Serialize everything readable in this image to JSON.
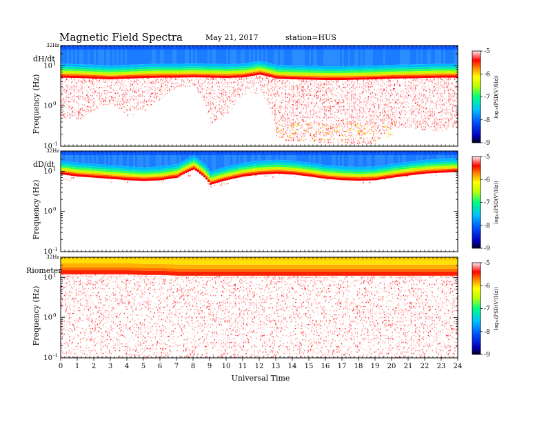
{
  "header": {
    "title": "Magnetic  Field  Spectra",
    "date": "May 21, 2017",
    "station": "station=HUS"
  },
  "chart_data": {
    "type": "heatmap",
    "xlabel": "Universal Time",
    "x_ticks": [
      "0",
      "1",
      "2",
      "3",
      "4",
      "5",
      "6",
      "7",
      "8",
      "9",
      "10",
      "11",
      "12",
      "13",
      "14",
      "15",
      "16",
      "17",
      "18",
      "19",
      "20",
      "21",
      "22",
      "23",
      "24"
    ],
    "xlim": [
      0,
      24
    ],
    "scale": "log",
    "colorbar": {
      "label": "log₁₀(PSD(V²/Hz))",
      "ticks": [
        "-5",
        "-6",
        "-7",
        "-8",
        "-9"
      ],
      "range": [
        -9,
        -5
      ],
      "colors": [
        "#000030",
        "#0000ff",
        "#00a0ff",
        "#00ff80",
        "#ffff00",
        "#ff0000",
        "#ffe0e0"
      ]
    },
    "panels": [
      {
        "name": "dH/dt",
        "ylabel": "Frequency  (Hz)",
        "top_label": "32Hz",
        "y_ticks": [
          {
            "base": "10",
            "exp": "1"
          },
          {
            "base": "10",
            "exp": "0"
          },
          {
            "base": "10",
            "exp": "-1"
          }
        ],
        "ylim": [
          0.1,
          32
        ],
        "cutoff_hz": [
          5.5,
          5.4,
          5.2,
          5.0,
          5.2,
          5.4,
          5.5,
          5.5,
          5.6,
          5.5,
          5.4,
          5.6,
          6.5,
          5.2,
          5.0,
          4.9,
          4.8,
          4.8,
          4.9,
          5.0,
          5.2,
          5.3,
          5.4,
          5.5,
          5.5
        ],
        "floor_hz": [
          0.5,
          0.45,
          0.8,
          1.2,
          0.5,
          0.8,
          1.5,
          3.0,
          3.0,
          0.35,
          0.6,
          2.0,
          2.0,
          0.15,
          0.14,
          0.13,
          0.12,
          0.12,
          0.11,
          0.12,
          0.3,
          0.3,
          0.25,
          0.25,
          0.3
        ]
      },
      {
        "name": "dD/dt",
        "ylabel": "Frequency  (Hz)",
        "top_label": "32Hz",
        "y_ticks": [
          {
            "base": "10",
            "exp": "1"
          },
          {
            "base": "10",
            "exp": "0"
          },
          {
            "base": "10",
            "exp": "-1"
          }
        ],
        "ylim": [
          0.1,
          32
        ],
        "cutoff_hz": [
          9.0,
          8.0,
          7.5,
          7.0,
          6.5,
          6.2,
          6.5,
          7.5,
          12.0,
          5.0,
          6.5,
          8.0,
          9.0,
          9.5,
          9.0,
          8.0,
          7.0,
          6.5,
          6.3,
          6.5,
          7.5,
          8.5,
          9.5,
          10.0,
          10.5
        ],
        "floor_hz": [
          6,
          6,
          6,
          5.5,
          5.5,
          5.2,
          5.5,
          6,
          8,
          4,
          5,
          6,
          7,
          7.5,
          7,
          6.5,
          6,
          5.5,
          5.2,
          5.5,
          6,
          7,
          7.5,
          8,
          8.5
        ]
      },
      {
        "name": "Riometer",
        "ylabel": "Frequency  (Hz)",
        "top_label": "32Hz",
        "y_ticks": [
          {
            "base": "10",
            "exp": "1"
          },
          {
            "base": "10",
            "exp": "0"
          },
          {
            "base": "10",
            "exp": "-1"
          }
        ],
        "ylim": [
          0.1,
          32
        ],
        "cutoff_hz": [
          13,
          13,
          13,
          13,
          13,
          12.5,
          12.5,
          12,
          12,
          12,
          12,
          12,
          12,
          12,
          12,
          12,
          12,
          12,
          12,
          12,
          12,
          12,
          12,
          12,
          12
        ],
        "floor_hz": [
          0.1,
          0.1,
          0.1,
          0.1,
          0.1,
          0.1,
          0.1,
          0.1,
          0.1,
          0.1,
          0.1,
          0.1,
          0.1,
          0.1,
          0.1,
          0.1,
          0.1,
          0.1,
          0.1,
          0.1,
          0.1,
          0.1,
          0.1,
          0.1,
          0.1
        ]
      }
    ]
  }
}
